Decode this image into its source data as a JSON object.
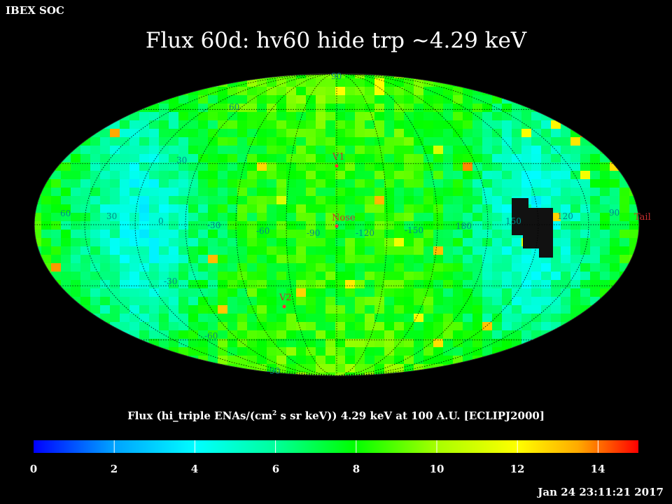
{
  "header": {
    "soc_label": "IBEX SOC",
    "title": "Flux   60d: hv60 hide trp ~4.29 keV"
  },
  "map": {
    "projection": "Mollweide (ecliptic)",
    "longitude_labels": [
      "60",
      "30",
      "0",
      "-30",
      "-60",
      "-90",
      "-120",
      "-150",
      "180",
      "150",
      "120",
      "90"
    ],
    "latitude_labels": [
      "90",
      "60",
      "30",
      "-30",
      "-60",
      "-90"
    ],
    "markers": [
      {
        "label": "V1",
        "color": "#ff3030"
      },
      {
        "label": "Nose",
        "color": "#ff3030"
      },
      {
        "label": "V2",
        "color": "#ff3030"
      },
      {
        "label": "Tail",
        "color": "#ff3030"
      }
    ],
    "grid_color": "#000000",
    "label_color": "#008a8a"
  },
  "colorbar": {
    "title_prefix": "Flux (hi_triple ENAs/(cm",
    "title_sup": "2",
    "title_suffix": " s sr keV))  4.29 keV at 100 A.U. [ECLIPJ2000]",
    "min": 0,
    "max": 15,
    "tick_labels": [
      "0",
      "2",
      "4",
      "6",
      "8",
      "10",
      "12",
      "14"
    ],
    "colors": [
      "#0000ff",
      "#00a0ff",
      "#00ffff",
      "#00ff9a",
      "#00ff00",
      "#aaff00",
      "#ffff00",
      "#ffaa00",
      "#ff0000"
    ]
  },
  "footer": {
    "timestamp": "Jan 24 23:11:21 2017"
  }
}
